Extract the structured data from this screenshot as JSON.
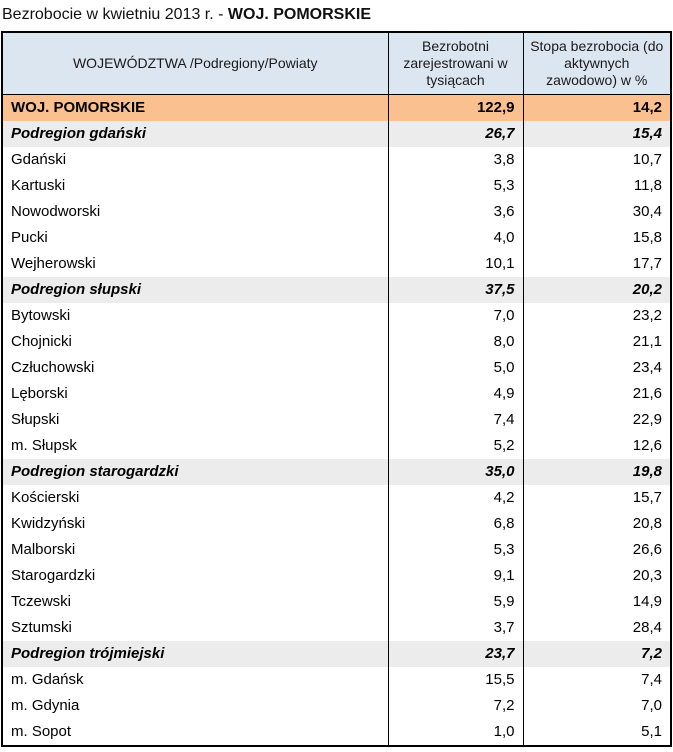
{
  "title": {
    "prefix": "Bezrobocie w kwietniu 2013 r. - ",
    "highlight": "WOJ. POMORSKIE"
  },
  "chart_data": {
    "type": "table",
    "title": "Bezrobocie w kwietniu 2013 r. - WOJ. POMORSKIE",
    "columns": [
      "WOJEWÓDZTWA /Podregiony/Powiaty",
      "Bezrobotni zarejestrowani w tysiącach",
      "Stopa bezrobocia (do aktywnych zawodowo) w %"
    ],
    "rows": [
      {
        "label": "WOJ. POMORSKIE",
        "unemployed_thousands": "122,9",
        "rate_percent": "14,2",
        "level": "voivodeship"
      },
      {
        "label": "Podregion gdański",
        "unemployed_thousands": "26,7",
        "rate_percent": "15,4",
        "level": "subregion"
      },
      {
        "label": "Gdański",
        "unemployed_thousands": "3,8",
        "rate_percent": "10,7",
        "level": "county"
      },
      {
        "label": "Kartuski",
        "unemployed_thousands": "5,3",
        "rate_percent": "11,8",
        "level": "county"
      },
      {
        "label": "Nowodworski",
        "unemployed_thousands": "3,6",
        "rate_percent": "30,4",
        "level": "county"
      },
      {
        "label": "Pucki",
        "unemployed_thousands": "4,0",
        "rate_percent": "15,8",
        "level": "county"
      },
      {
        "label": "Wejherowski",
        "unemployed_thousands": "10,1",
        "rate_percent": "17,7",
        "level": "county"
      },
      {
        "label": "Podregion słupski",
        "unemployed_thousands": "37,5",
        "rate_percent": "20,2",
        "level": "subregion"
      },
      {
        "label": "Bytowski",
        "unemployed_thousands": "7,0",
        "rate_percent": "23,2",
        "level": "county"
      },
      {
        "label": "Chojnicki",
        "unemployed_thousands": "8,0",
        "rate_percent": "21,1",
        "level": "county"
      },
      {
        "label": "Człuchowski",
        "unemployed_thousands": "5,0",
        "rate_percent": "23,4",
        "level": "county"
      },
      {
        "label": "Lęborski",
        "unemployed_thousands": "4,9",
        "rate_percent": "21,6",
        "level": "county"
      },
      {
        "label": "Słupski",
        "unemployed_thousands": "7,4",
        "rate_percent": "22,9",
        "level": "county"
      },
      {
        "label": "m. Słupsk",
        "unemployed_thousands": "5,2",
        "rate_percent": "12,6",
        "level": "county"
      },
      {
        "label": "Podregion starogardzki",
        "unemployed_thousands": "35,0",
        "rate_percent": "19,8",
        "level": "subregion"
      },
      {
        "label": "Kościerski",
        "unemployed_thousands": "4,2",
        "rate_percent": "15,7",
        "level": "county"
      },
      {
        "label": "Kwidzyński",
        "unemployed_thousands": "6,8",
        "rate_percent": "20,8",
        "level": "county"
      },
      {
        "label": "Malborski",
        "unemployed_thousands": "5,3",
        "rate_percent": "26,6",
        "level": "county"
      },
      {
        "label": "Starogardzki",
        "unemployed_thousands": "9,1",
        "rate_percent": "20,3",
        "level": "county"
      },
      {
        "label": "Tczewski",
        "unemployed_thousands": "5,9",
        "rate_percent": "14,9",
        "level": "county"
      },
      {
        "label": "Sztumski",
        "unemployed_thousands": "3,7",
        "rate_percent": "28,4",
        "level": "county"
      },
      {
        "label": "Podregion trójmiejski",
        "unemployed_thousands": "23,7",
        "rate_percent": "7,2",
        "level": "subregion"
      },
      {
        "label": "m. Gdańsk",
        "unemployed_thousands": "15,5",
        "rate_percent": "7,4",
        "level": "county"
      },
      {
        "label": "m. Gdynia",
        "unemployed_thousands": "7,2",
        "rate_percent": "7,0",
        "level": "county"
      },
      {
        "label": "m. Sopot",
        "unemployed_thousands": "1,0",
        "rate_percent": "5,1",
        "level": "county"
      }
    ]
  },
  "colors": {
    "header_bg": "#DCE6F1",
    "voivodeship_row_bg": "#FAC090",
    "subregion_row_bg": "#ECECEC",
    "border": "#000000"
  }
}
